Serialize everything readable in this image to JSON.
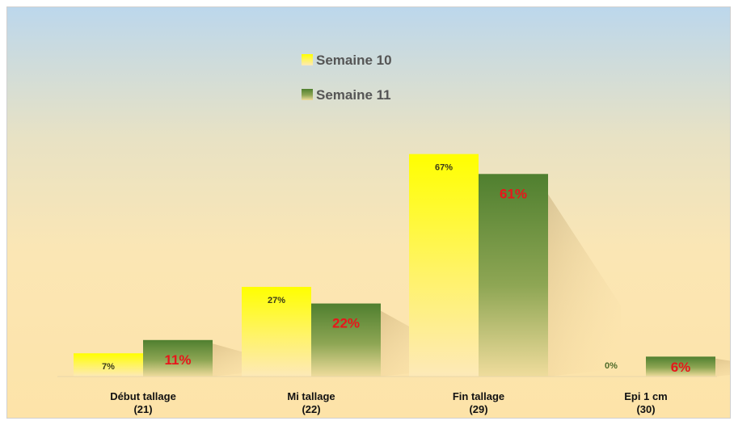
{
  "chart_data": {
    "type": "bar",
    "categories": [
      {
        "line1": "Début tallage",
        "line2": "(21)"
      },
      {
        "line1": "Mi tallage",
        "line2": "(22)"
      },
      {
        "line1": "Fin tallage",
        "line2": "(29)"
      },
      {
        "line1": "Epi 1 cm",
        "line2": "(30)"
      }
    ],
    "series": [
      {
        "name": "Semaine 10",
        "values": [
          7,
          27,
          67,
          0
        ],
        "labels": [
          "7%",
          "27%",
          "67%",
          "0%"
        ],
        "color": "#ffff00"
      },
      {
        "name": "Semaine 11",
        "values": [
          11,
          22,
          61,
          6
        ],
        "labels": [
          "11%",
          "22%",
          "61%",
          "6%"
        ],
        "color": "#4f7f2f"
      }
    ],
    "ylim": [
      0,
      75
    ],
    "legend_position": "top-center",
    "grid": false
  }
}
